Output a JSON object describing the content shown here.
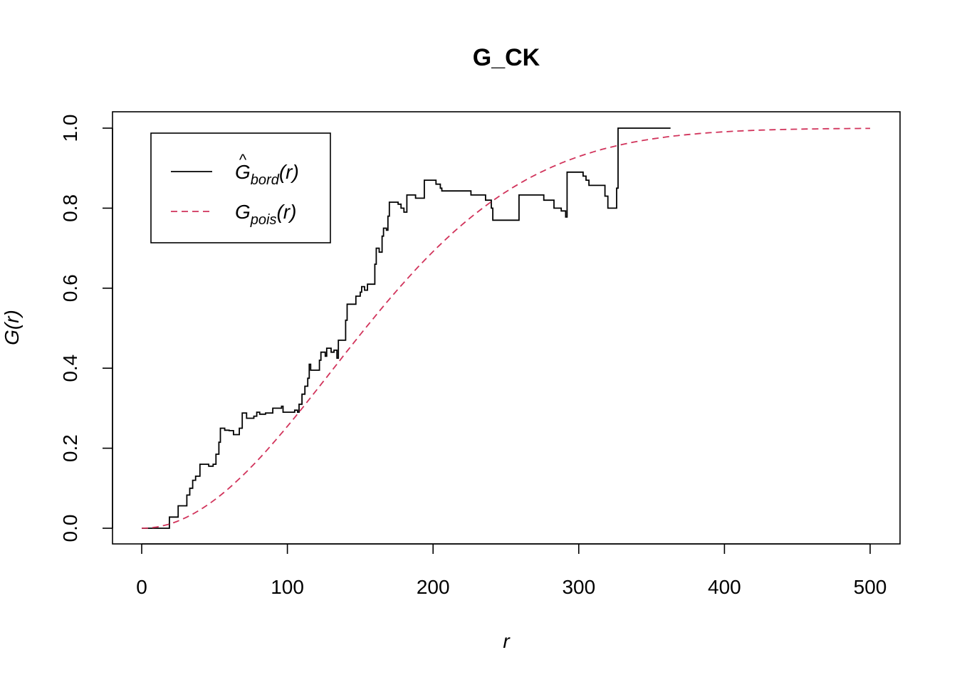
{
  "chart_data": {
    "type": "line",
    "title": "G_CK",
    "xlabel": "r",
    "ylabel": "G(r)",
    "xlim": [
      0,
      500
    ],
    "ylim": [
      0,
      1
    ],
    "x_ticks": [
      0,
      100,
      200,
      300,
      400,
      500
    ],
    "y_ticks": [
      0.0,
      0.2,
      0.4,
      0.6,
      0.8,
      1.0
    ],
    "x_tick_labels": [
      "0",
      "100",
      "200",
      "300",
      "400",
      "500"
    ],
    "y_tick_labels": [
      "0.0",
      "0.2",
      "0.4",
      "0.6",
      "0.8",
      "1.0"
    ],
    "legend_position": "top-left",
    "series": [
      {
        "name": "Ĝbord(r)",
        "legend_main": "G",
        "legend_hat": "^",
        "legend_sub": "bord",
        "legend_arg": "(r)",
        "color": "#000000",
        "style": "solid",
        "step": true,
        "points": [
          [
            0,
            0
          ],
          [
            19,
            0
          ],
          [
            19,
            0.028
          ],
          [
            25,
            0.028
          ],
          [
            25,
            0.056
          ],
          [
            31,
            0.056
          ],
          [
            31,
            0.083
          ],
          [
            33,
            0.083
          ],
          [
            33,
            0.1
          ],
          [
            35,
            0.1
          ],
          [
            35,
            0.12
          ],
          [
            37,
            0.12
          ],
          [
            37,
            0.13
          ],
          [
            40,
            0.13
          ],
          [
            40,
            0.16
          ],
          [
            46,
            0.16
          ],
          [
            46,
            0.155
          ],
          [
            49,
            0.155
          ],
          [
            49,
            0.16
          ],
          [
            51,
            0.16
          ],
          [
            51,
            0.185
          ],
          [
            53,
            0.185
          ],
          [
            53,
            0.215
          ],
          [
            54,
            0.215
          ],
          [
            54,
            0.25
          ],
          [
            57,
            0.25
          ],
          [
            57,
            0.245
          ],
          [
            60,
            0.245
          ],
          [
            60,
            0.244
          ],
          [
            63,
            0.244
          ],
          [
            63,
            0.234
          ],
          [
            67,
            0.234
          ],
          [
            67,
            0.25
          ],
          [
            69,
            0.25
          ],
          [
            69,
            0.288
          ],
          [
            72,
            0.288
          ],
          [
            72,
            0.275
          ],
          [
            77,
            0.275
          ],
          [
            77,
            0.28
          ],
          [
            79,
            0.28
          ],
          [
            79,
            0.29
          ],
          [
            81,
            0.29
          ],
          [
            81,
            0.285
          ],
          [
            85,
            0.285
          ],
          [
            85,
            0.288
          ],
          [
            90,
            0.288
          ],
          [
            90,
            0.3
          ],
          [
            96,
            0.3
          ],
          [
            96,
            0.305
          ],
          [
            97,
            0.305
          ],
          [
            97,
            0.29
          ],
          [
            105,
            0.29
          ],
          [
            105,
            0.295
          ],
          [
            107,
            0.295
          ],
          [
            107,
            0.29
          ],
          [
            108,
            0.29
          ],
          [
            108,
            0.31
          ],
          [
            110,
            0.31
          ],
          [
            110,
            0.335
          ],
          [
            112,
            0.335
          ],
          [
            112,
            0.355
          ],
          [
            114,
            0.355
          ],
          [
            114,
            0.375
          ],
          [
            115,
            0.375
          ],
          [
            115,
            0.41
          ],
          [
            116,
            0.41
          ],
          [
            116,
            0.395
          ],
          [
            122,
            0.395
          ],
          [
            122,
            0.42
          ],
          [
            123,
            0.42
          ],
          [
            123,
            0.44
          ],
          [
            126,
            0.44
          ],
          [
            126,
            0.43
          ],
          [
            127,
            0.43
          ],
          [
            127,
            0.45
          ],
          [
            130,
            0.45
          ],
          [
            130,
            0.44
          ],
          [
            132,
            0.44
          ],
          [
            132,
            0.445
          ],
          [
            134,
            0.445
          ],
          [
            134,
            0.425
          ],
          [
            135,
            0.425
          ],
          [
            135,
            0.47
          ],
          [
            140,
            0.47
          ],
          [
            140,
            0.52
          ],
          [
            141,
            0.52
          ],
          [
            141,
            0.56
          ],
          [
            147,
            0.56
          ],
          [
            147,
            0.58
          ],
          [
            150,
            0.58
          ],
          [
            150,
            0.59
          ],
          [
            151,
            0.59
          ],
          [
            151,
            0.604
          ],
          [
            153,
            0.604
          ],
          [
            153,
            0.595
          ],
          [
            155,
            0.595
          ],
          [
            155,
            0.61
          ],
          [
            160,
            0.61
          ],
          [
            160,
            0.66
          ],
          [
            161,
            0.66
          ],
          [
            161,
            0.7
          ],
          [
            163,
            0.7
          ],
          [
            163,
            0.69
          ],
          [
            165,
            0.69
          ],
          [
            165,
            0.73
          ],
          [
            166,
            0.73
          ],
          [
            166,
            0.75
          ],
          [
            168,
            0.75
          ],
          [
            168,
            0.745
          ],
          [
            169,
            0.745
          ],
          [
            169,
            0.78
          ],
          [
            170,
            0.78
          ],
          [
            170,
            0.815
          ],
          [
            176,
            0.815
          ],
          [
            176,
            0.81
          ],
          [
            178,
            0.81
          ],
          [
            178,
            0.8
          ],
          [
            180,
            0.8
          ],
          [
            180,
            0.79
          ],
          [
            182,
            0.79
          ],
          [
            182,
            0.833
          ],
          [
            188,
            0.833
          ],
          [
            188,
            0.825
          ],
          [
            194,
            0.825
          ],
          [
            194,
            0.87
          ],
          [
            202,
            0.87
          ],
          [
            202,
            0.86
          ],
          [
            205,
            0.86
          ],
          [
            205,
            0.85
          ],
          [
            206,
            0.85
          ],
          [
            206,
            0.843
          ],
          [
            226,
            0.843
          ],
          [
            226,
            0.833
          ],
          [
            236,
            0.833
          ],
          [
            236,
            0.82
          ],
          [
            240,
            0.82
          ],
          [
            240,
            0.8
          ],
          [
            241,
            0.8
          ],
          [
            241,
            0.77
          ],
          [
            259,
            0.77
          ],
          [
            259,
            0.833
          ],
          [
            276,
            0.833
          ],
          [
            276,
            0.82
          ],
          [
            283,
            0.82
          ],
          [
            283,
            0.8
          ],
          [
            288,
            0.8
          ],
          [
            288,
            0.793
          ],
          [
            291,
            0.793
          ],
          [
            291,
            0.778
          ],
          [
            292,
            0.778
          ],
          [
            292,
            0.89
          ],
          [
            303,
            0.89
          ],
          [
            303,
            0.88
          ],
          [
            305,
            0.88
          ],
          [
            305,
            0.87
          ],
          [
            307,
            0.87
          ],
          [
            307,
            0.857
          ],
          [
            318,
            0.857
          ],
          [
            318,
            0.83
          ],
          [
            320,
            0.83
          ],
          [
            320,
            0.8
          ],
          [
            326,
            0.8
          ],
          [
            326,
            0.85
          ],
          [
            327,
            0.85
          ],
          [
            327,
            1.0
          ],
          [
            363,
            1.0
          ]
        ]
      },
      {
        "name": "Gpois(r)",
        "legend_main": "G",
        "legend_hat": "",
        "legend_sub": "pois",
        "legend_arg": "(r)",
        "color": "#d1335b",
        "style": "dashed",
        "step": false,
        "function": "1 - exp(-lambda*pi*r^2)",
        "lambda_pi": 2.94e-05
      }
    ]
  }
}
